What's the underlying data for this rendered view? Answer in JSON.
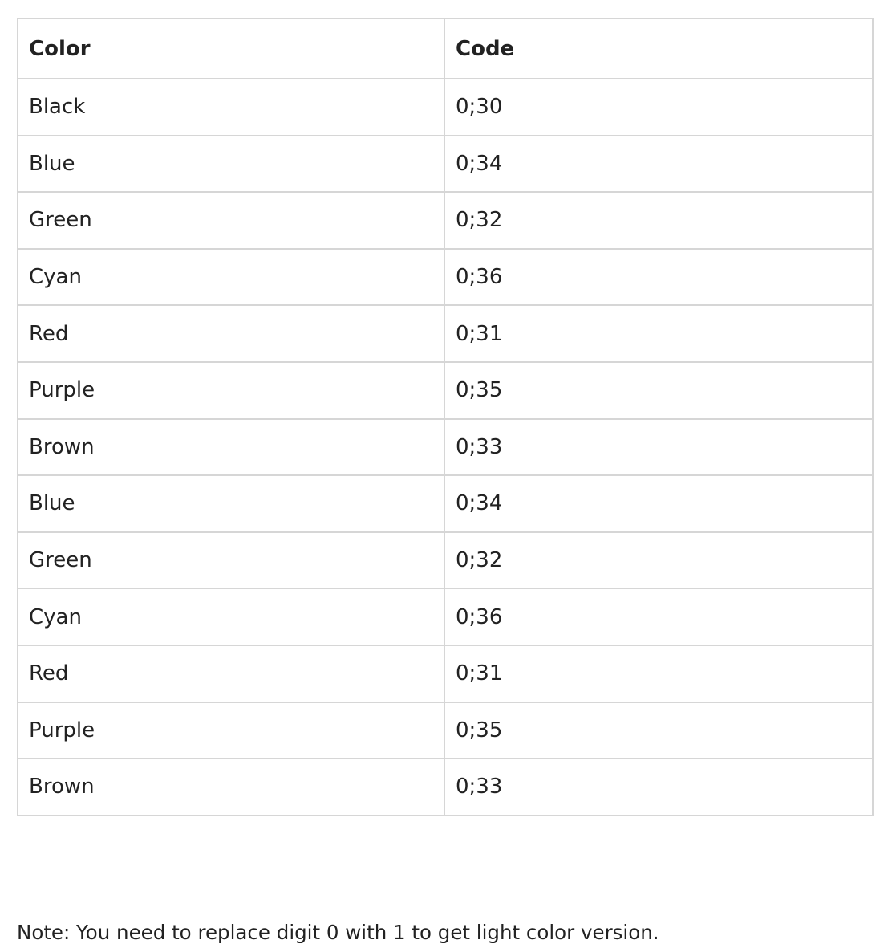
{
  "table": {
    "headers": [
      "Color",
      "Code"
    ],
    "rows": [
      [
        "Black",
        "0;30"
      ],
      [
        "Blue",
        "0;34"
      ],
      [
        "Green",
        "0;32"
      ],
      [
        "Cyan",
        "0;36"
      ],
      [
        "Red",
        "0;31"
      ],
      [
        "Purple",
        "0;35"
      ],
      [
        "Brown",
        "0;33"
      ],
      [
        "Blue",
        "0;34"
      ],
      [
        "Green",
        "0;32"
      ],
      [
        "Cyan",
        "0;36"
      ],
      [
        "Red",
        "0;31"
      ],
      [
        "Purple",
        "0;35"
      ],
      [
        "Brown",
        "0;33"
      ]
    ]
  },
  "note": "Note: You need to replace digit 0 with 1 to get light color version.",
  "colors": {
    "text": "#222222",
    "border": "#d6d6d6",
    "background": "#ffffff"
  }
}
